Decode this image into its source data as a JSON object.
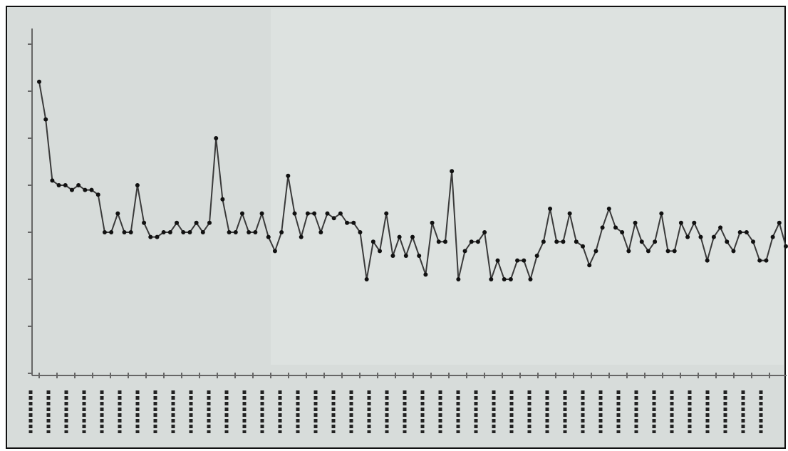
{
  "chart_data": {
    "type": "line",
    "color": "#3a3a3a",
    "marker_color": "#111111",
    "ylim": [
      0,
      7
    ],
    "yticks": [
      0,
      1,
      2,
      3,
      4,
      5,
      6,
      7
    ],
    "values": [
      6.2,
      5.4,
      4.1,
      4.0,
      4.0,
      3.9,
      4.0,
      3.9,
      3.9,
      3.8,
      3.0,
      3.0,
      3.4,
      3.0,
      3.0,
      4.0,
      3.2,
      2.9,
      2.9,
      3.0,
      3.0,
      3.2,
      3.0,
      3.0,
      3.2,
      3.0,
      3.2,
      5.0,
      3.7,
      3.0,
      3.0,
      3.4,
      3.0,
      3.0,
      3.4,
      2.9,
      2.6,
      3.0,
      4.2,
      3.4,
      2.9,
      3.4,
      3.4,
      3.0,
      3.4,
      3.3,
      3.4,
      3.2,
      3.2,
      3.0,
      2.0,
      2.8,
      2.6,
      3.4,
      2.5,
      2.9,
      2.5,
      2.9,
      2.5,
      2.1,
      3.2,
      2.8,
      2.8,
      4.3,
      2.0,
      2.6,
      2.8,
      2.8,
      3.0,
      2.0,
      2.4,
      2.0,
      2.0,
      2.4,
      2.4,
      2.0,
      2.5,
      2.8,
      3.5,
      2.8,
      2.8,
      3.4,
      2.8,
      2.7,
      2.3,
      2.6,
      3.1,
      3.5,
      3.1,
      3.0,
      2.6,
      3.2,
      2.8,
      2.6,
      2.8,
      3.4,
      2.6,
      2.6,
      3.2,
      2.9,
      3.2,
      2.9,
      2.4,
      2.9,
      3.1,
      2.8,
      2.6,
      3.0,
      3.0,
      2.8,
      2.4,
      2.4,
      2.9,
      3.2,
      2.7
    ]
  }
}
